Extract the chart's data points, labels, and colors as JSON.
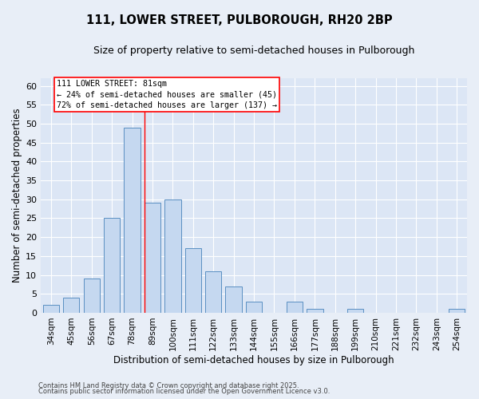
{
  "title": "111, LOWER STREET, PULBOROUGH, RH20 2BP",
  "subtitle": "Size of property relative to semi-detached houses in Pulborough",
  "xlabel": "Distribution of semi-detached houses by size in Pulborough",
  "ylabel": "Number of semi-detached properties",
  "bar_labels": [
    "34sqm",
    "45sqm",
    "56sqm",
    "67sqm",
    "78sqm",
    "89sqm",
    "100sqm",
    "111sqm",
    "122sqm",
    "133sqm",
    "144sqm",
    "155sqm",
    "166sqm",
    "177sqm",
    "188sqm",
    "199sqm",
    "210sqm",
    "221sqm",
    "232sqm",
    "243sqm",
    "254sqm"
  ],
  "bar_values": [
    2,
    4,
    9,
    25,
    49,
    29,
    30,
    17,
    11,
    7,
    3,
    0,
    3,
    1,
    0,
    1,
    0,
    0,
    0,
    0,
    1
  ],
  "bar_color": "#c5d8f0",
  "bar_edge_color": "#5a8fc2",
  "ylim": [
    0,
    62
  ],
  "yticks": [
    0,
    5,
    10,
    15,
    20,
    25,
    30,
    35,
    40,
    45,
    50,
    55,
    60
  ],
  "red_line_index": 5,
  "annotation_title": "111 LOWER STREET: 81sqm",
  "annotation_line1": "← 24% of semi-detached houses are smaller (45)",
  "annotation_line2": "72% of semi-detached houses are larger (137) →",
  "footer1": "Contains HM Land Registry data © Crown copyright and database right 2025.",
  "footer2": "Contains public sector information licensed under the Open Government Licence v3.0.",
  "background_color": "#e8eef7",
  "plot_bg_color": "#dce6f5",
  "grid_color": "#ffffff"
}
